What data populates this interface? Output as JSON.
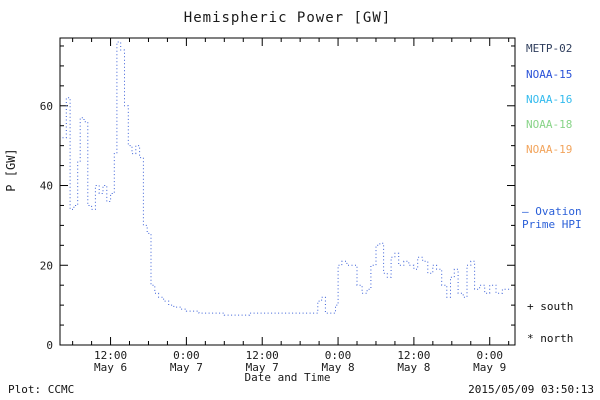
{
  "title": "Hemispheric Power [GW]",
  "colors": {
    "axis": "#000000",
    "text": "#1a1a1a",
    "hpi_line": "#3a5fd8",
    "ovation": "#2a5fd8"
  },
  "legend": {
    "items": [
      {
        "label": "METP-02",
        "color": "#2e3d5c"
      },
      {
        "label": "NOAA-15",
        "color": "#2a52d8"
      },
      {
        "label": "NOAA-16",
        "color": "#33bbee"
      },
      {
        "label": "NOAA-18",
        "color": "#88d488"
      },
      {
        "label": "NOAA-19",
        "color": "#f2a45c"
      }
    ],
    "ovation_line1": "– Ovation",
    "ovation_line2": "Prime HPI",
    "south_label": "+ south",
    "north_label": "* north"
  },
  "footer": {
    "plot_credit": "Plot: CCMC",
    "timestamp": "2015/05/09 03:50:13"
  },
  "chart_data": {
    "type": "line",
    "title": "Hemispheric Power [GW]",
    "xlabel": "Date and Time",
    "ylabel": "P [GW]",
    "ylim": [
      0,
      77
    ],
    "xlim_hours": [
      4,
      76
    ],
    "yticks": [
      0,
      20,
      40,
      60
    ],
    "xticks": [
      {
        "hour": 12,
        "time": "12:00",
        "date": "May 6"
      },
      {
        "hour": 24,
        "time": "0:00",
        "date": "May 7"
      },
      {
        "hour": 36,
        "time": "12:00",
        "date": "May 7"
      },
      {
        "hour": 48,
        "time": "0:00",
        "date": "May 8"
      },
      {
        "hour": 60,
        "time": "12:00",
        "date": "May 8"
      },
      {
        "hour": 72,
        "time": "0:00",
        "date": "May 9"
      }
    ],
    "grid": false,
    "legend_position": "right",
    "series": [
      {
        "name": "Ovation Prime HPI",
        "style": "dotted-step",
        "color": "#3a5fd8",
        "points_hour_gw": [
          [
            4.4,
            52
          ],
          [
            5.0,
            62
          ],
          [
            5.6,
            34
          ],
          [
            6.2,
            35
          ],
          [
            6.8,
            46
          ],
          [
            7.2,
            57
          ],
          [
            7.8,
            56
          ],
          [
            8.4,
            35
          ],
          [
            9.0,
            34
          ],
          [
            9.6,
            40
          ],
          [
            10.2,
            38
          ],
          [
            10.8,
            40
          ],
          [
            11.4,
            36
          ],
          [
            12.0,
            38
          ],
          [
            12.6,
            48
          ],
          [
            13.0,
            76
          ],
          [
            13.6,
            74
          ],
          [
            14.2,
            60
          ],
          [
            14.8,
            50
          ],
          [
            15.4,
            48
          ],
          [
            16.0,
            50
          ],
          [
            16.6,
            47
          ],
          [
            17.2,
            30
          ],
          [
            17.8,
            28
          ],
          [
            18.4,
            15
          ],
          [
            19.0,
            13
          ],
          [
            19.6,
            12
          ],
          [
            20.4,
            11
          ],
          [
            21.2,
            10
          ],
          [
            22.0,
            9.5
          ],
          [
            23.0,
            9
          ],
          [
            24.0,
            8.5
          ],
          [
            25.0,
            8.5
          ],
          [
            26.0,
            8
          ],
          [
            28.0,
            8
          ],
          [
            30.0,
            7.5
          ],
          [
            32.0,
            7.5
          ],
          [
            34.0,
            8
          ],
          [
            36.0,
            8
          ],
          [
            38.0,
            8
          ],
          [
            40.0,
            8
          ],
          [
            42.0,
            8
          ],
          [
            44.0,
            8
          ],
          [
            44.8,
            11
          ],
          [
            45.4,
            12
          ],
          [
            46.0,
            8
          ],
          [
            47.0,
            8
          ],
          [
            47.6,
            10
          ],
          [
            48.0,
            20
          ],
          [
            48.6,
            21
          ],
          [
            49.4,
            20
          ],
          [
            50.2,
            20
          ],
          [
            51.0,
            15
          ],
          [
            51.8,
            13
          ],
          [
            52.6,
            14
          ],
          [
            53.2,
            20
          ],
          [
            54.0,
            25
          ],
          [
            54.6,
            25.5
          ],
          [
            55.2,
            18
          ],
          [
            55.8,
            17
          ],
          [
            56.4,
            22
          ],
          [
            57.0,
            23
          ],
          [
            57.6,
            20
          ],
          [
            58.4,
            21
          ],
          [
            59.2,
            20
          ],
          [
            60.0,
            19
          ],
          [
            60.6,
            22
          ],
          [
            61.4,
            21
          ],
          [
            62.2,
            18
          ],
          [
            63.0,
            20
          ],
          [
            63.6,
            19
          ],
          [
            64.4,
            15
          ],
          [
            65.2,
            12
          ],
          [
            65.8,
            17
          ],
          [
            66.4,
            19
          ],
          [
            67.0,
            13
          ],
          [
            67.8,
            12
          ],
          [
            68.4,
            20
          ],
          [
            69.0,
            21
          ],
          [
            69.6,
            14
          ],
          [
            70.4,
            15
          ],
          [
            71.2,
            13
          ],
          [
            72.0,
            15
          ],
          [
            73.0,
            13
          ],
          [
            74.0,
            14
          ],
          [
            75.5,
            14
          ]
        ]
      }
    ]
  }
}
